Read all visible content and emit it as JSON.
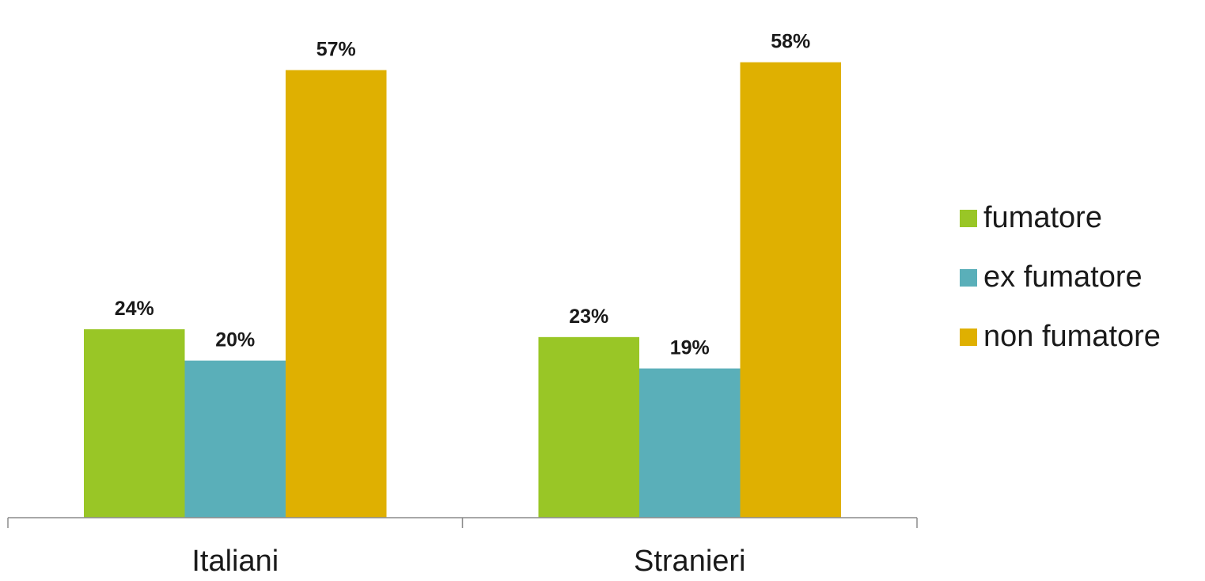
{
  "chart_data": {
    "type": "bar",
    "categories": [
      "Italiani",
      "Stranieri"
    ],
    "series": [
      {
        "name": "fumatore",
        "values": [
          24,
          23
        ],
        "labels": [
          "24%",
          "23%"
        ],
        "color": "#99c626"
      },
      {
        "name": "ex fumatore",
        "values": [
          20,
          19
        ],
        "labels": [
          "20%",
          "19%"
        ],
        "color": "#5aafb9"
      },
      {
        "name": "non fumatore",
        "values": [
          57,
          58
        ],
        "labels": [
          "57%",
          "58%"
        ],
        "color": "#dfb001"
      }
    ],
    "ylim": [
      0,
      63
    ],
    "grid": false,
    "legend_position": "right",
    "xlabel": "",
    "ylabel": ""
  }
}
